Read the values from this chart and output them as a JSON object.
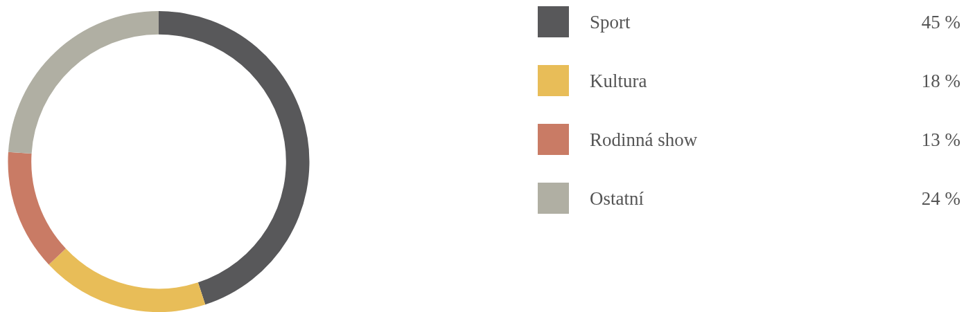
{
  "chart_data": {
    "type": "donut",
    "categories": [
      "Sport",
      "Kultura",
      "Rodinná show",
      "Ostatní"
    ],
    "values": [
      45,
      18,
      13,
      24
    ],
    "value_labels": [
      "45 %",
      "18 %",
      "13 %",
      "24 %"
    ],
    "colors": [
      "#58585a",
      "#e8bd58",
      "#c97b65",
      "#b0afa3"
    ],
    "legend": "right"
  }
}
